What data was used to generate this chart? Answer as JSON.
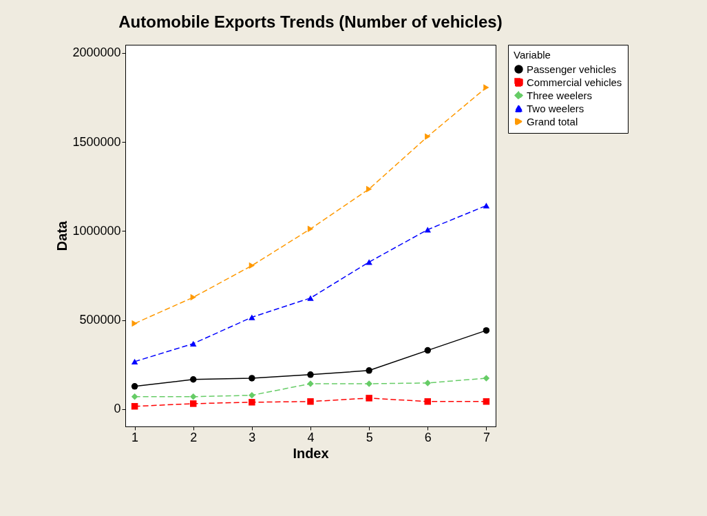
{
  "chart_data": {
    "type": "line",
    "title": "Automobile Exports Trends (Number of vehicles)",
    "xlabel": "Index",
    "ylabel": "Data",
    "legend_title": "Variable",
    "x": [
      1,
      2,
      3,
      4,
      5,
      6,
      7
    ],
    "series": [
      {
        "name": "Passenger vehicles",
        "color": "#000000",
        "marker": "circle",
        "line_style": "solid",
        "values": [
          128000,
          167000,
          174000,
          194000,
          217000,
          330000,
          442000
        ]
      },
      {
        "name": "Commercial vehicles",
        "color": "#ff0000",
        "marker": "square",
        "line_style": "dashed",
        "values": [
          16000,
          31000,
          39000,
          43000,
          62000,
          43000,
          43000
        ]
      },
      {
        "name": "Three weelers",
        "color": "#66cc66",
        "marker": "diamond",
        "line_style": "dashed",
        "values": [
          70000,
          70000,
          78000,
          143000,
          143000,
          147000,
          174000
        ]
      },
      {
        "name": "Two weelers",
        "color": "#0000ff",
        "marker": "triangle",
        "line_style": "dashed",
        "values": [
          267000,
          368000,
          516000,
          624000,
          826000,
          1008000,
          1143000
        ]
      },
      {
        "name": "Grand total",
        "color": "#ff9900",
        "marker": "triangle-right",
        "line_style": "dashed",
        "values": [
          481000,
          628000,
          806000,
          1012000,
          1236000,
          1531000,
          1806000
        ]
      }
    ],
    "xlim": [
      0.84,
      7.16
    ],
    "xticks": [
      1,
      2,
      3,
      4,
      5,
      6,
      7
    ],
    "ylim": [
      -97000,
      2046000
    ],
    "yticks": [
      0,
      500000,
      1000000,
      1500000,
      2000000
    ],
    "grid": false,
    "legend": "right"
  }
}
